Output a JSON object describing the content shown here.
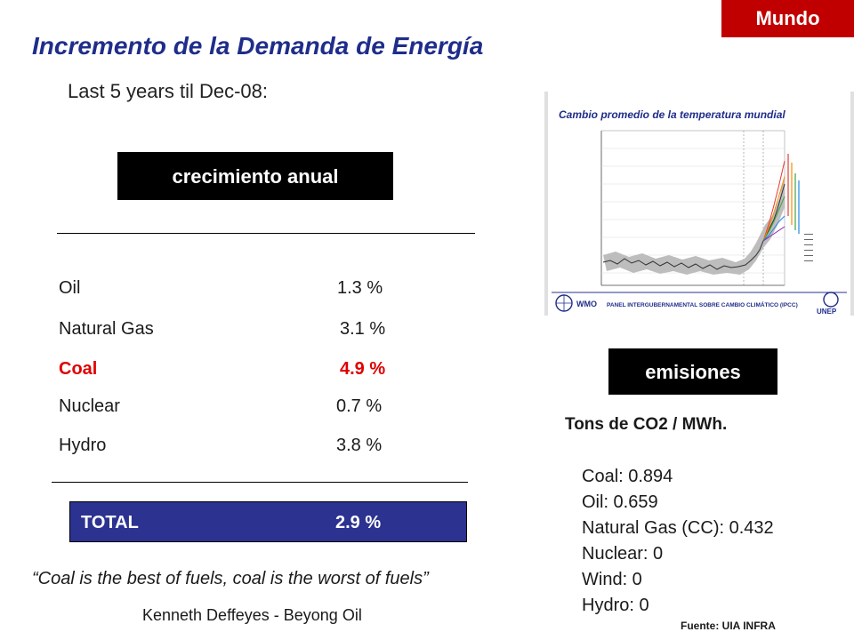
{
  "badge": "Mundo",
  "title": "Incremento de la Demanda de Energía",
  "subtitle": "Last 5 years til Dec-08:",
  "growth_heading": "crecimiento anual",
  "growth_rows": [
    {
      "name": "Oil",
      "value": "1.3 %"
    },
    {
      "name": "Natural Gas",
      "value": "3.1 %"
    },
    {
      "name": "Coal",
      "value": "4.9 %"
    },
    {
      "name": "Nuclear",
      "value": "0.7 %"
    },
    {
      "name": "Hydro",
      "value": "3.8 %"
    }
  ],
  "total": {
    "label": "TOTAL",
    "value": "2.9 %"
  },
  "quote": "“Coal is the best of fuels, coal is the worst of fuels”",
  "author": "Kenneth Deffeyes - Beyong Oil",
  "figure": {
    "title": "Cambio promedio de la temperatura mundial",
    "footer": "PANEL INTERGUBERNAMENTAL SOBRE CAMBIO CLIMÁTICO (IPCC)",
    "logo_left": "WMO",
    "logo_right": "UNEP"
  },
  "emissions_heading": "emisiones",
  "emissions_unit": "Tons de CO2 / MWh.",
  "emissions": [
    "Coal: 0.894",
    "Oil: 0.659",
    "Natural Gas (CC): 0.432",
    "Nuclear: 0",
    "Wind: 0",
    "Hydro: 0"
  ],
  "source": "Fuente: UIA  INFRA",
  "colors": {
    "badge": "#c00000",
    "title": "#1f2d8a",
    "total_bg": "#2b3290",
    "coal": "#e00000"
  }
}
